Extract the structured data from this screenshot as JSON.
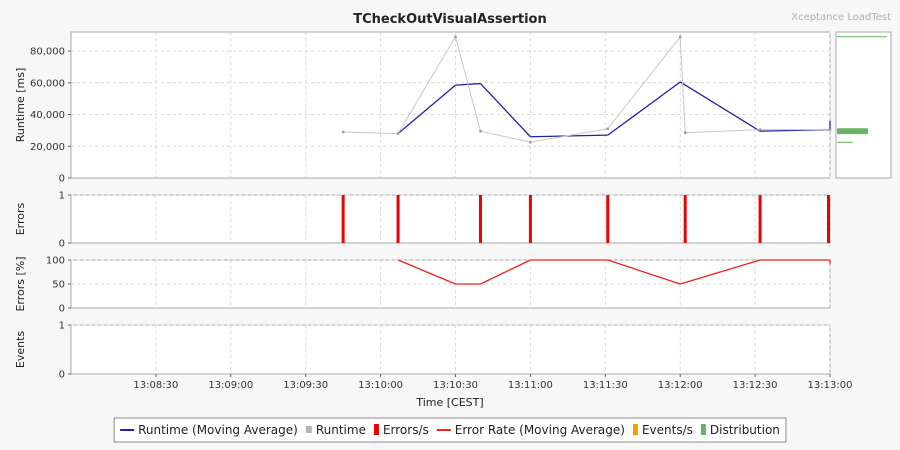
{
  "chart_data": {
    "type": "line",
    "title": "TCheckOutVisualAssertion",
    "brand": "Xceptance LoadTest",
    "x_axis": {
      "label": "Time [CEST]",
      "range": [
        "13:07:56",
        "13:13:00"
      ],
      "ticks": [
        "13:08:30",
        "13:09:00",
        "13:09:30",
        "13:10:00",
        "13:10:30",
        "13:11:00",
        "13:11:30",
        "13:12:00",
        "13:12:30",
        "13:13:00"
      ],
      "grid": true
    },
    "panels": [
      {
        "id": "runtime",
        "ylabel": "Runtime [ms]",
        "ylim": [
          0,
          92000
        ],
        "yticks": [
          0,
          20000,
          40000,
          60000,
          80000
        ],
        "ytick_labels": [
          "0",
          "20,000",
          "40,000",
          "60,000",
          "80,000"
        ],
        "series": [
          {
            "name": "Runtime (Moving Average)",
            "kind": "line",
            "color": "#2020aa",
            "points": [
              [
                "13:10:07",
                28000
              ],
              [
                "13:10:30",
                58500
              ],
              [
                "13:10:40",
                59500
              ],
              [
                "13:11:00",
                26000
              ],
              [
                "13:11:31",
                27000
              ],
              [
                "13:12:00",
                60500
              ],
              [
                "13:12:32",
                29500
              ],
              [
                "13:13:02",
                30500
              ],
              [
                "13:13:07",
                36000
              ]
            ]
          },
          {
            "name": "Runtime",
            "kind": "scatter-line",
            "color": "#c8c8c8",
            "points": [
              [
                "13:09:45",
                29000
              ],
              [
                "13:10:07",
                28000
              ],
              [
                "13:10:30",
                89000
              ],
              [
                "13:10:40",
                29500
              ],
              [
                "13:11:00",
                22500
              ],
              [
                "13:11:31",
                31000
              ],
              [
                "13:12:00",
                89000
              ],
              [
                "13:12:02",
                28500
              ],
              [
                "13:12:32",
                30500
              ],
              [
                "13:13:02",
                30500
              ]
            ]
          }
        ],
        "distribution": {
          "name": "Distribution",
          "color": "#66b266",
          "values": [
            89000,
            31000,
            30500,
            30000,
            29500,
            29000,
            28500,
            28000,
            22500
          ]
        }
      },
      {
        "id": "errors",
        "ylabel": "Errors",
        "ylim": [
          0,
          1
        ],
        "yticks": [
          0,
          1
        ],
        "ytick_labels": [
          "0",
          "1"
        ],
        "series": [
          {
            "name": "Errors/s",
            "kind": "bar",
            "color": "#ee0000",
            "points": [
              [
                "13:09:45",
                1
              ],
              [
                "13:10:07",
                1
              ],
              [
                "13:10:40",
                1
              ],
              [
                "13:11:00",
                1
              ],
              [
                "13:11:31",
                1
              ],
              [
                "13:12:02",
                1
              ],
              [
                "13:12:32",
                1
              ],
              [
                "13:13:02",
                1
              ]
            ]
          }
        ]
      },
      {
        "id": "error-rate",
        "ylabel": "Errors [%]",
        "ylim": [
          0,
          100
        ],
        "yticks": [
          0,
          50,
          100
        ],
        "ytick_labels": [
          "0",
          "50",
          "100"
        ],
        "series": [
          {
            "name": "Error Rate (Moving Average)",
            "kind": "line",
            "color": "#ee2222",
            "points": [
              [
                "13:10:07",
                100
              ],
              [
                "13:10:30",
                50
              ],
              [
                "13:10:40",
                50
              ],
              [
                "13:11:00",
                100
              ],
              [
                "13:11:31",
                100
              ],
              [
                "13:12:00",
                50
              ],
              [
                "13:12:32",
                100
              ],
              [
                "13:13:02",
                100
              ],
              [
                "13:13:07",
                91
              ]
            ]
          }
        ]
      },
      {
        "id": "events",
        "ylabel": "Events",
        "ylim": [
          0,
          1
        ],
        "yticks": [
          0,
          1
        ],
        "ytick_labels": [
          "0",
          "1"
        ],
        "series": [
          {
            "name": "Events/s",
            "kind": "bar",
            "color": "#f0a000",
            "points": []
          }
        ]
      }
    ],
    "legend": {
      "placement": "bottom-center",
      "entries": [
        {
          "label": "Runtime (Moving Average)",
          "color": "#2020aa",
          "symbol": "line"
        },
        {
          "label": "Runtime",
          "color": "#b4b4b4",
          "symbol": "square"
        },
        {
          "label": "Errors/s",
          "color": "#ee0000",
          "symbol": "bar"
        },
        {
          "label": "Error Rate (Moving Average)",
          "color": "#ee2222",
          "symbol": "line"
        },
        {
          "label": "Events/s",
          "color": "#f0a000",
          "symbol": "bar"
        },
        {
          "label": "Distribution",
          "color": "#66b266",
          "symbol": "bar"
        }
      ]
    }
  }
}
